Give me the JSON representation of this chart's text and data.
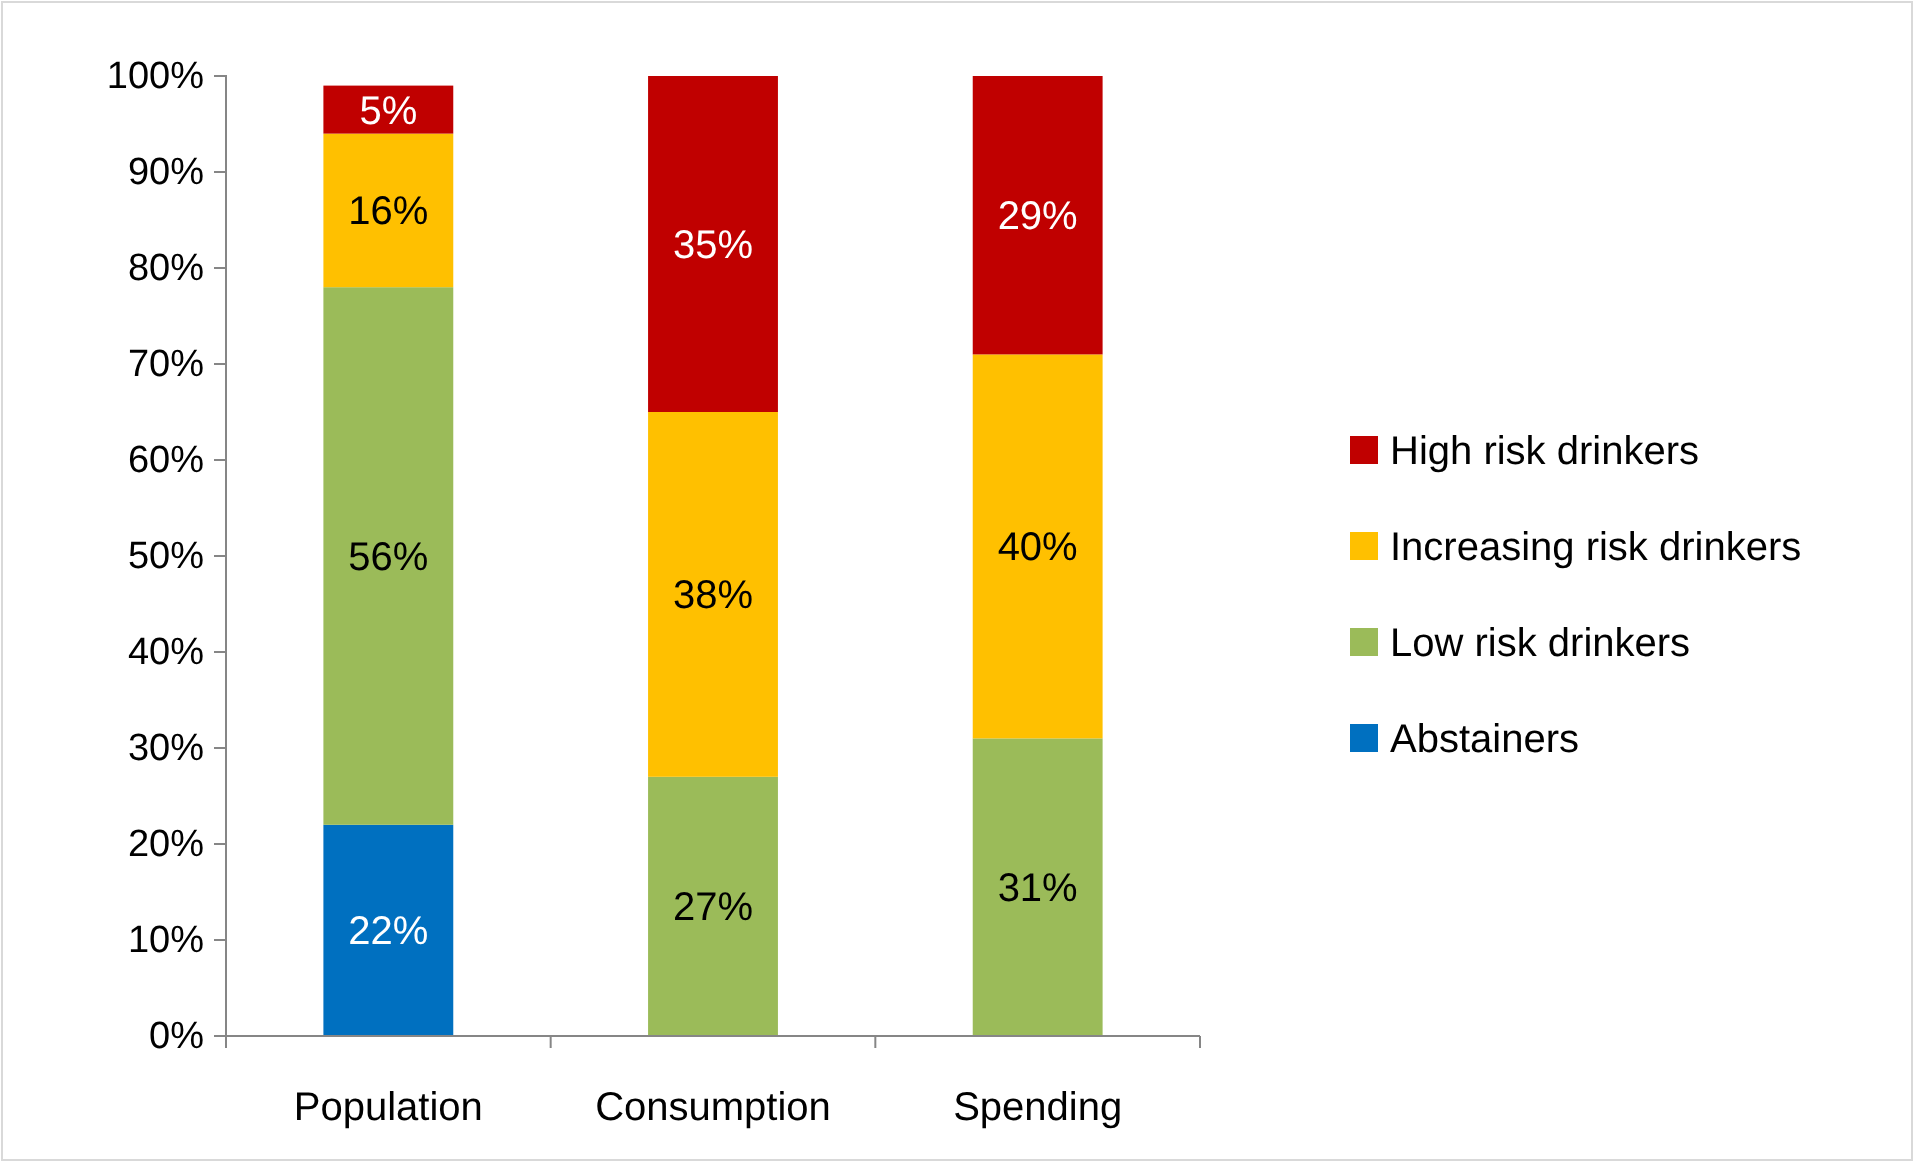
{
  "chart_data": {
    "type": "bar",
    "stacked": true,
    "categories": [
      "Population",
      "Consumption",
      "Spending"
    ],
    "series": [
      {
        "name": "Abstainers",
        "color": "#0070c0",
        "values": [
          22,
          null,
          null
        ],
        "value_labels": [
          "22%",
          null,
          null
        ]
      },
      {
        "name": "Low risk drinkers",
        "color": "#9bbb59",
        "values": [
          56,
          27,
          31
        ],
        "value_labels": [
          "56%",
          "27%",
          "31%"
        ]
      },
      {
        "name": "Increasing risk drinkers",
        "color": "#ffc000",
        "values": [
          16,
          38,
          40
        ],
        "value_labels": [
          "16%",
          "38%",
          "40%"
        ]
      },
      {
        "name": "High risk drinkers",
        "color": "#c00000",
        "values": [
          5,
          35,
          29
        ],
        "value_labels": [
          "5%",
          "35%",
          "29%"
        ]
      }
    ],
    "ylim": [
      0,
      100
    ],
    "yticks": [
      {
        "value": 0,
        "label": "0%"
      },
      {
        "value": 10,
        "label": "10%"
      },
      {
        "value": 20,
        "label": "20%"
      },
      {
        "value": 30,
        "label": "30%"
      },
      {
        "value": 40,
        "label": "40%"
      },
      {
        "value": 50,
        "label": "50%"
      },
      {
        "value": 60,
        "label": "60%"
      },
      {
        "value": 70,
        "label": "70%"
      },
      {
        "value": 80,
        "label": "80%"
      },
      {
        "value": 90,
        "label": "90%"
      },
      {
        "value": 100,
        "label": "100%"
      }
    ],
    "grid": false,
    "legend": "right"
  }
}
